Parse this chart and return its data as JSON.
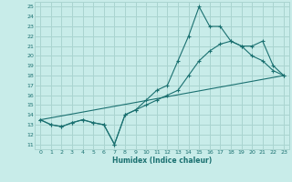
{
  "xlabel": "Humidex (Indice chaleur)",
  "background_color": "#c8ece9",
  "grid_color": "#aad4d0",
  "line_color": "#1a7070",
  "xlim": [
    -0.5,
    23.5
  ],
  "ylim": [
    10.5,
    25.5
  ],
  "xticks": [
    0,
    1,
    2,
    3,
    4,
    5,
    6,
    7,
    8,
    9,
    10,
    11,
    12,
    13,
    14,
    15,
    16,
    17,
    18,
    19,
    20,
    21,
    22,
    23
  ],
  "yticks": [
    11,
    12,
    13,
    14,
    15,
    16,
    17,
    18,
    19,
    20,
    21,
    22,
    23,
    24,
    25
  ],
  "line1_x": [
    0,
    1,
    2,
    3,
    4,
    5,
    6,
    7,
    8,
    9,
    10,
    11,
    12,
    13,
    14,
    15,
    16,
    17,
    18,
    19,
    20,
    21,
    22,
    23
  ],
  "line1_y": [
    13.5,
    13.0,
    12.8,
    13.2,
    13.5,
    13.2,
    13.0,
    11.0,
    14.0,
    14.5,
    15.5,
    16.5,
    17.0,
    19.5,
    22.0,
    25.0,
    23.0,
    23.0,
    21.5,
    21.0,
    20.0,
    19.5,
    18.5,
    18.0
  ],
  "line2_x": [
    0,
    1,
    2,
    3,
    4,
    5,
    6,
    7,
    8,
    9,
    10,
    11,
    12,
    13,
    14,
    15,
    16,
    17,
    18,
    19,
    20,
    21,
    22,
    23
  ],
  "line2_y": [
    13.5,
    13.0,
    12.8,
    13.2,
    13.5,
    13.2,
    13.0,
    11.0,
    14.0,
    14.5,
    15.0,
    15.5,
    16.0,
    16.5,
    18.0,
    19.5,
    20.5,
    21.2,
    21.5,
    21.0,
    21.0,
    21.5,
    19.0,
    18.0
  ],
  "line3_x": [
    0,
    23
  ],
  "line3_y": [
    13.5,
    18.0
  ]
}
